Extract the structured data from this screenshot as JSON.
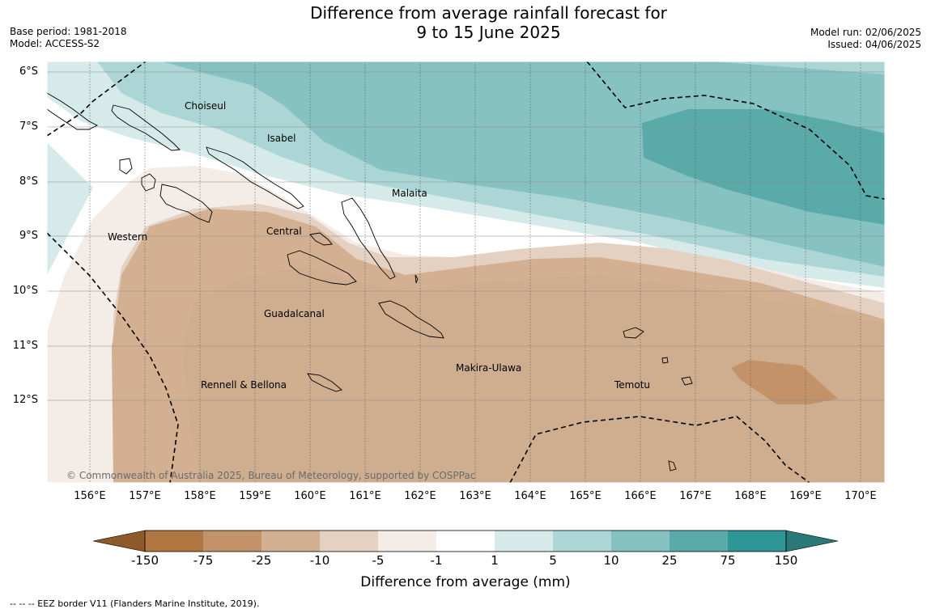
{
  "header": {
    "title_line1": "Difference from average rainfall forecast for",
    "title_line2": "9 to 15 June 2025",
    "base_period": "Base period: 1981-2018",
    "model": "Model: ACCESS-S2",
    "model_run": "Model run: 02/06/2025",
    "issued": "Issued: 04/06/2025"
  },
  "axes": {
    "latitudes": [
      "6°S",
      "7°S",
      "8°S",
      "9°S",
      "10°S",
      "11°S",
      "12°S"
    ],
    "longitudes": [
      "156°E",
      "157°E",
      "158°E",
      "159°E",
      "160°E",
      "161°E",
      "162°E",
      "163°E",
      "164°E",
      "165°E",
      "166°E",
      "167°E",
      "168°E",
      "169°E",
      "170°E"
    ]
  },
  "regions": [
    {
      "name": "Choiseul"
    },
    {
      "name": "Isabel"
    },
    {
      "name": "Malaita"
    },
    {
      "name": "Western"
    },
    {
      "name": "Central"
    },
    {
      "name": "Guadalcanal"
    },
    {
      "name": "Makira-Ulawa"
    },
    {
      "name": "Rennell & Bellona"
    },
    {
      "name": "Temotu"
    }
  ],
  "copyright": "© Commonwealth of Australia 2025, Bureau of Meteorology, supported by COSPPac",
  "colorbar": {
    "title": "Difference from average (mm)",
    "labels": [
      "-150",
      "-75",
      "-25",
      "-10",
      "-5",
      "-1",
      "1",
      "5",
      "10",
      "25",
      "75",
      "150"
    ],
    "colors": [
      "#8f5a2a",
      "#b07742",
      "#c39268",
      "#d4b092",
      "#e5d1c2",
      "#f4ece7",
      "#ffffff",
      "#d6eae9",
      "#acd6d6",
      "#86c2c2",
      "#5aaaa9",
      "#2e9696",
      "#2a7878"
    ]
  },
  "legend_note": "--  --  -- EEZ border V11 (Flanders Marine Institute, 2019)."
}
